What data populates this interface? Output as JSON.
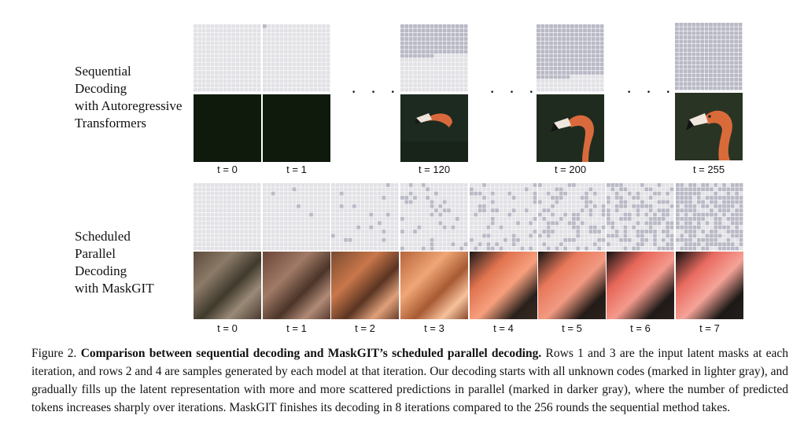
{
  "figure": {
    "label_seq": "Sequential Decoding with Autoregressive Transformers",
    "label_seq_lines": [
      "Sequential",
      "Decoding",
      "with Autoregressive",
      "Transformers"
    ],
    "label_par_lines": [
      "Scheduled",
      "Parallel",
      "Decoding",
      "with MaskGIT"
    ],
    "ellipsis": "· · ·",
    "seq_times": [
      "t = 0",
      "t = 1",
      "t = 120",
      "t = 200",
      "t = 255"
    ],
    "par_times": [
      "t = 0",
      "t = 1",
      "t = 2",
      "t = 3",
      "t = 4",
      "t = 5",
      "t = 6",
      "t = 7"
    ],
    "seq_rows_filled": [
      0,
      0.06,
      7.5,
      12.5,
      16
    ],
    "par_fill_fraction": [
      0,
      0.02,
      0.05,
      0.09,
      0.18,
      0.28,
      0.45,
      0.65
    ],
    "colors": {
      "mask_light": "#e2e2e6",
      "mask_dark": "#b9b9c6",
      "grid_line": "#ffffff"
    }
  },
  "caption": {
    "figure_num": "Figure 2.",
    "bold": "Comparison between sequential decoding and MaskGIT’s scheduled parallel decoding.",
    "text": "Rows 1 and 3 are the input latent masks at each iteration, and rows 2 and 4 are samples generated by each model at that iteration. Our decoding starts with all unknown codes (marked in lighter gray), and gradually fills up the latent representation with more and more scattered predictions in parallel (marked in darker gray), where the number of predicted tokens increases sharply over iterations. MaskGIT finishes its decoding in 8 iterations compared to the 256 rounds the sequential method takes."
  }
}
